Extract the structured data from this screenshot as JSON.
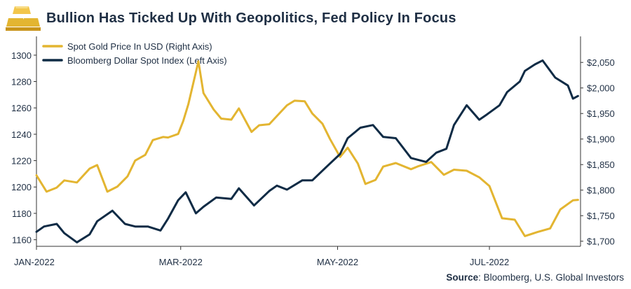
{
  "header": {
    "title": "Bullion Has Ticked Up With Geopolitics, Fed Policy In Focus",
    "logo_icon": "gold-bars-icon"
  },
  "source": {
    "label": "Source",
    "text": ": Bloomberg, U.S. Global Investors"
  },
  "colors": {
    "gold": "#E3B531",
    "navy": "#0F2B45",
    "axis": "#333333",
    "text": "#1F2F44"
  },
  "chart_data": {
    "type": "line",
    "title": "Bullion Has Ticked Up With Geopolitics, Fed Policy In Focus",
    "legend_position": "top-left",
    "grid": false,
    "x_ticks": [
      "JAN-2022",
      "MAR-2022",
      "MAY-2022",
      "JUL-2022"
    ],
    "x_range": [
      "2022-01-03",
      "2022-08-05"
    ],
    "left_axis": {
      "ylim": [
        1155,
        1310
      ],
      "ticks": [
        1160,
        1180,
        1200,
        1220,
        1240,
        1260,
        1280,
        1300
      ]
    },
    "right_axis": {
      "ylim": [
        1690,
        2090
      ],
      "ticks": [
        "$1,700",
        "$1,750",
        "$1,800",
        "$1,850",
        "$1,900",
        "$1,950",
        "$2,000",
        "$2,050"
      ],
      "tick_values": [
        1700,
        1750,
        1800,
        1850,
        1900,
        1950,
        2000,
        2050
      ]
    },
    "series": [
      {
        "name": "Spot Gold Price In USD (Right Axis)",
        "axis": "right",
        "color": "#E3B531",
        "x": [
          "2022-01-03",
          "2022-01-07",
          "2022-01-11",
          "2022-01-14",
          "2022-01-19",
          "2022-01-24",
          "2022-01-27",
          "2022-01-31",
          "2022-02-04",
          "2022-02-08",
          "2022-02-11",
          "2022-02-15",
          "2022-02-18",
          "2022-02-22",
          "2022-02-24",
          "2022-02-28",
          "2022-03-02",
          "2022-03-04",
          "2022-03-08",
          "2022-03-10",
          "2022-03-14",
          "2022-03-17",
          "2022-03-21",
          "2022-03-24",
          "2022-03-29",
          "2022-04-01",
          "2022-04-05",
          "2022-04-08",
          "2022-04-12",
          "2022-04-15",
          "2022-04-19",
          "2022-04-22",
          "2022-04-26",
          "2022-04-29",
          "2022-05-03",
          "2022-05-06",
          "2022-05-10",
          "2022-05-13",
          "2022-05-17",
          "2022-05-20",
          "2022-05-25",
          "2022-05-31",
          "2022-06-03",
          "2022-06-08",
          "2022-06-13",
          "2022-06-17",
          "2022-06-22",
          "2022-06-27",
          "2022-07-01",
          "2022-07-06",
          "2022-07-11",
          "2022-07-15",
          "2022-07-20",
          "2022-07-25",
          "2022-07-29",
          "2022-08-03",
          "2022-08-05"
        ],
        "values": [
          1829,
          1797,
          1805,
          1819,
          1815,
          1842,
          1849,
          1797,
          1807,
          1827,
          1858,
          1869,
          1898,
          1904,
          1903,
          1910,
          1935,
          1968,
          2052,
          1990,
          1958,
          1940,
          1938,
          1960,
          1914,
          1927,
          1929,
          1945,
          1966,
          1975,
          1974,
          1950,
          1930,
          1900,
          1865,
          1883,
          1852,
          1812,
          1820,
          1846,
          1853,
          1841,
          1847,
          1855,
          1830,
          1840,
          1838,
          1825,
          1808,
          1745,
          1742,
          1710,
          1718,
          1725,
          1762,
          1780,
          1781
        ]
      },
      {
        "name": "Bloomberg Dollar Spot Index (Left Axis)",
        "axis": "left",
        "color": "#0F2B45",
        "x": [
          "2022-01-03",
          "2022-01-06",
          "2022-01-11",
          "2022-01-14",
          "2022-01-19",
          "2022-01-24",
          "2022-01-27",
          "2022-02-02",
          "2022-02-07",
          "2022-02-11",
          "2022-02-16",
          "2022-02-21",
          "2022-02-24",
          "2022-02-28",
          "2022-03-03",
          "2022-03-07",
          "2022-03-10",
          "2022-03-15",
          "2022-03-21",
          "2022-03-24",
          "2022-03-30",
          "2022-04-05",
          "2022-04-08",
          "2022-04-12",
          "2022-04-18",
          "2022-04-22",
          "2022-04-28",
          "2022-05-03",
          "2022-05-06",
          "2022-05-11",
          "2022-05-16",
          "2022-05-20",
          "2022-05-25",
          "2022-05-31",
          "2022-06-06",
          "2022-06-10",
          "2022-06-14",
          "2022-06-17",
          "2022-06-22",
          "2022-06-27",
          "2022-06-30",
          "2022-07-05",
          "2022-07-08",
          "2022-07-13",
          "2022-07-15",
          "2022-07-19",
          "2022-07-22",
          "2022-07-27",
          "2022-08-01",
          "2022-08-03",
          "2022-08-05"
        ],
        "values": [
          1166,
          1170,
          1172,
          1165,
          1158,
          1164,
          1174,
          1182,
          1172,
          1170,
          1170,
          1167,
          1176,
          1190,
          1196,
          1180,
          1185,
          1192,
          1191,
          1199,
          1186,
          1197,
          1201,
          1198,
          1205,
          1205,
          1216,
          1225,
          1237,
          1245,
          1247,
          1238,
          1237,
          1222,
          1219,
          1226,
          1229,
          1247,
          1262,
          1251,
          1255,
          1262,
          1272,
          1280,
          1288,
          1293,
          1296,
          1283,
          1277,
          1267,
          1269
        ]
      }
    ]
  }
}
